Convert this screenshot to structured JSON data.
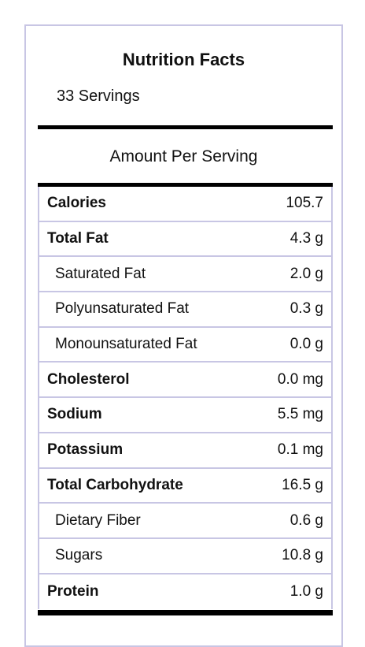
{
  "header": {
    "title": "Nutrition Facts",
    "servings": "33 Servings",
    "amount_label": "Amount Per Serving"
  },
  "table": {
    "rows": [
      {
        "label": "Calories",
        "value": "105.7",
        "bold": true
      },
      {
        "label": "Total Fat",
        "value": "4.3 g",
        "bold": true
      },
      {
        "label": "Saturated Fat",
        "value": "2.0 g",
        "bold": false
      },
      {
        "label": "Polyunsaturated Fat",
        "value": "0.3 g",
        "bold": false
      },
      {
        "label": "Monounsaturated Fat",
        "value": "0.0 g",
        "bold": false
      },
      {
        "label": "Cholesterol",
        "value": "0.0 mg",
        "bold": true
      },
      {
        "label": "Sodium",
        "value": "5.5 mg",
        "bold": true
      },
      {
        "label": "Potassium",
        "value": "0.1 mg",
        "bold": true
      },
      {
        "label": "Total Carbohydrate",
        "value": "16.5 g",
        "bold": true
      },
      {
        "label": "Dietary Fiber",
        "value": "0.6 g",
        "bold": false
      },
      {
        "label": "Sugars",
        "value": "10.8 g",
        "bold": false
      },
      {
        "label": "Protein",
        "value": "1.0 g",
        "bold": true
      }
    ]
  }
}
